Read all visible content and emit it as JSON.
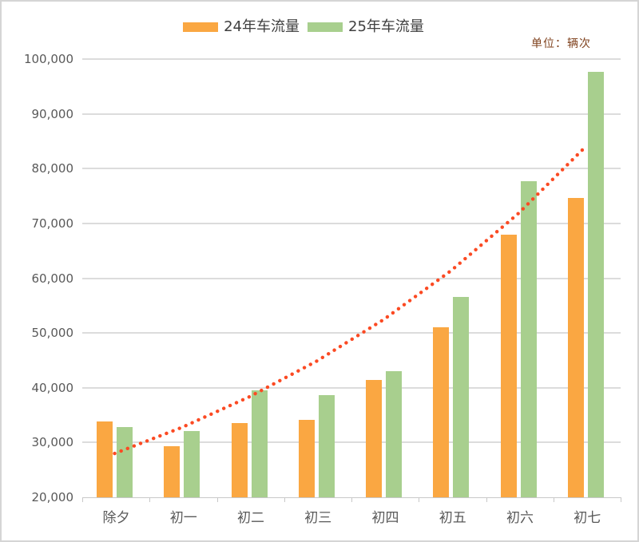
{
  "unit_label": "单位：辆次",
  "chart_data": {
    "type": "bar",
    "title": "",
    "categories": [
      "除夕",
      "初一",
      "初二",
      "初三",
      "初四",
      "初五",
      "初六",
      "初七"
    ],
    "series": [
      {
        "name": "24年车流量",
        "color": "#faa742",
        "values": [
          33900,
          29400,
          33500,
          34100,
          41500,
          51000,
          67900,
          74600
        ]
      },
      {
        "name": "25年车流量",
        "color": "#a8cf8e",
        "values": [
          32900,
          32100,
          39500,
          38600,
          43000,
          56600,
          77700,
          97700
        ]
      }
    ],
    "trendline": {
      "type": "exponential",
      "color": "#fb4a23",
      "values": [
        28000,
        32760,
        38330,
        44850,
        52470,
        61390,
        71820,
        84030
      ]
    },
    "ylim": [
      20000,
      100000
    ],
    "ytick_step": 10000,
    "ytick_labels": [
      "100,000",
      "90,000",
      "80,000",
      "70,000",
      "60,000",
      "50,000",
      "40,000",
      "30,000",
      "20,000"
    ],
    "xlabel": "",
    "ylabel": "",
    "grid": true,
    "legend_position": "top",
    "grid_color": "#dcdcdc",
    "axis_text_color": "#595959",
    "unit_text_color": "#80431f"
  }
}
